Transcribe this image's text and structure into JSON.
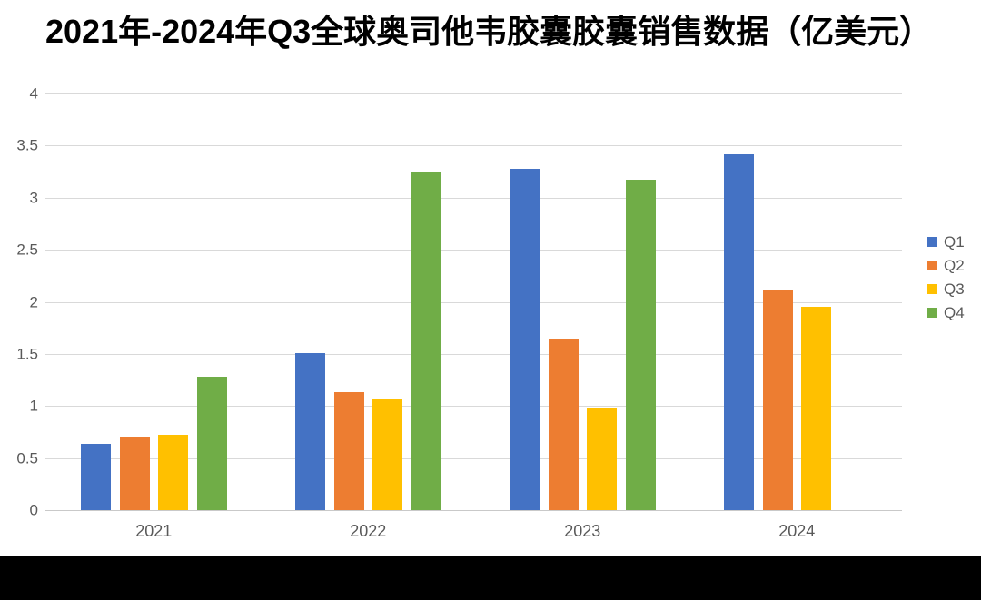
{
  "title": "2021年-2024年Q3全球奥司他韦胶囊胶囊销售数据（亿美元）",
  "chart_data": {
    "type": "bar",
    "title": "2021年-2024年Q3全球奥司他韦胶囊胶囊销售数据（亿美元）",
    "categories": [
      "2021",
      "2022",
      "2023",
      "2024"
    ],
    "series": [
      {
        "name": "Q1",
        "color": "#4472C4",
        "values": [
          0.64,
          1.51,
          3.28,
          3.42
        ]
      },
      {
        "name": "Q2",
        "color": "#ED7D31",
        "values": [
          0.71,
          1.13,
          1.64,
          2.11
        ]
      },
      {
        "name": "Q3",
        "color": "#FFC000",
        "values": [
          0.72,
          1.06,
          0.98,
          1.95
        ]
      },
      {
        "name": "Q4",
        "color": "#70AD47",
        "values": [
          1.28,
          3.24,
          3.17,
          null
        ]
      }
    ],
    "xlabel": "",
    "ylabel": "",
    "ylim": [
      0,
      4
    ],
    "yticks": [
      "0",
      "0.5",
      "1",
      "1.5",
      "2",
      "2.5",
      "3",
      "3.5",
      "4"
    ],
    "grid": true,
    "legend_position": "right"
  },
  "colors": {
    "background": "#FFFFFF",
    "gridline": "#D9D9D9",
    "axis_text": "#595959",
    "title_text": "#000000",
    "bottom_bar": "#000000"
  }
}
